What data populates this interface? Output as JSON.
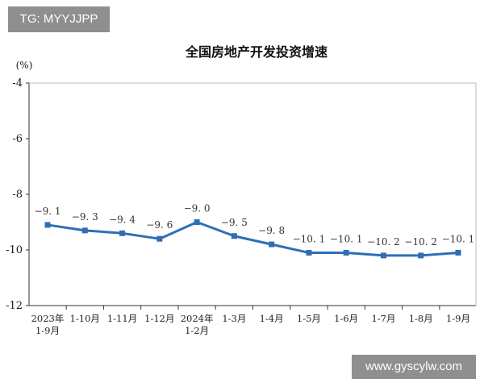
{
  "watermarks": {
    "top": "TG: MYYJJPP",
    "bottom": "www.gyscylw.com"
  },
  "chart_data": {
    "type": "line",
    "title": "全国房地产开发投资增速",
    "ylabel": "(%)",
    "xlabel": "",
    "ylim": [
      -12,
      -4
    ],
    "yticks": [
      -4,
      -6,
      -8,
      -10,
      -12
    ],
    "grid": false,
    "legend": "none",
    "line_color": "#2f6eb5",
    "categories": [
      [
        "2023年",
        "1-9月"
      ],
      [
        "1-10月"
      ],
      [
        "1-11月"
      ],
      [
        "1-12月"
      ],
      [
        "2024年",
        "1-2月"
      ],
      [
        "1-3月"
      ],
      [
        "1-4月"
      ],
      [
        "1-5月"
      ],
      [
        "1-6月"
      ],
      [
        "1-7月"
      ],
      [
        "1-8月"
      ],
      [
        "1-9月"
      ]
    ],
    "values": [
      -9.1,
      -9.3,
      -9.4,
      -9.6,
      -9.0,
      -9.5,
      -9.8,
      -10.1,
      -10.1,
      -10.2,
      -10.2,
      -10.1
    ],
    "data_labels": [
      "−9. 1",
      "−9. 3",
      "−9. 4",
      "−9. 6",
      "−9. 0",
      "−9. 5",
      "−9. 8",
      "−10. 1",
      "−10. 1",
      "−10. 2",
      "−10. 2",
      "−10. 1"
    ]
  }
}
